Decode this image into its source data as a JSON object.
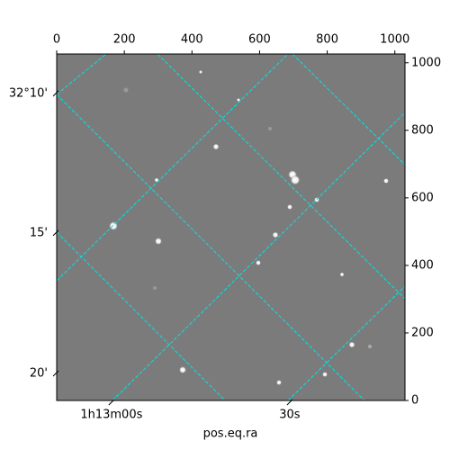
{
  "chart_data": {
    "type": "image",
    "xlabel": "pos.eq.ra",
    "xlim": [
      0,
      1030
    ],
    "ylim": [
      0,
      1026
    ],
    "xticks": [
      0,
      200,
      400,
      600,
      800,
      1000
    ],
    "yticks": [
      0,
      200,
      400,
      600,
      800,
      1000
    ],
    "left_ticks": [
      {
        "value": 909,
        "label": "32°10'"
      },
      {
        "value": 496,
        "label": "15'"
      },
      {
        "value": 80,
        "label": "20'"
      }
    ],
    "bottom_ticks": [
      {
        "value": 162,
        "label": "1h13m00s"
      },
      {
        "value": 689,
        "label": "30s"
      }
    ],
    "grid_color": "#00e5e5"
  }
}
